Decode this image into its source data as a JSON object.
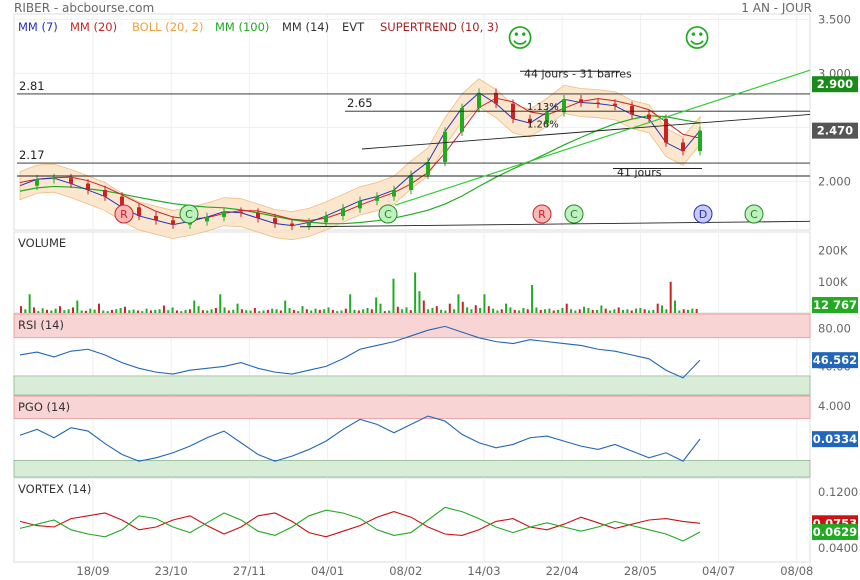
{
  "header": {
    "title": "RIBER - abcbourse.com",
    "period": "1 AN - JOUR"
  },
  "indicators": [
    {
      "label": "MM (7)",
      "color": "#2233bb"
    },
    {
      "label": "MM (20)",
      "color": "#cc2222"
    },
    {
      "label": "BOLL (20, 2)",
      "color": "#f0a040"
    },
    {
      "label": "MM (100)",
      "color": "#22aa22"
    },
    {
      "label": "MM (14)",
      "color": "#333333"
    },
    {
      "label": "EVT",
      "color": "#333333"
    },
    {
      "label": "SUPERTREND (10, 3)",
      "color": "#aa2222"
    }
  ],
  "panels": {
    "volume": "VOLUME",
    "rsi": "RSI (14)",
    "pgo": "PGO (14)",
    "vortex": "VORTEX (14)"
  },
  "chart_data": {
    "type": "candlestick",
    "x_tick_labels": [
      "18/09",
      "23/10",
      "27/11",
      "04/01",
      "08/02",
      "14/03",
      "22/04",
      "28/05",
      "04/07",
      "08/08"
    ],
    "price": {
      "ylim": [
        1.55,
        3.55
      ],
      "ticks": [
        "3.500",
        "3.000",
        "2.500",
        "2.000"
      ],
      "tick_values": [
        3.5,
        3.0,
        2.5,
        2.0
      ],
      "close_points": [
        1.96,
        2.02,
        2.03,
        1.98,
        1.92,
        1.86,
        1.76,
        1.68,
        1.64,
        1.6,
        1.63,
        1.67,
        1.72,
        1.71,
        1.66,
        1.61,
        1.59,
        1.62,
        1.68,
        1.75,
        1.82,
        1.86,
        1.92,
        2.06,
        2.18,
        2.46,
        2.68,
        2.82,
        2.72,
        2.58,
        2.54,
        2.64,
        2.76,
        2.73,
        2.72,
        2.7,
        2.62,
        2.58,
        2.36,
        2.28,
        2.47
      ],
      "levels": [
        {
          "label": "2.81",
          "value": 2.81
        },
        {
          "label": "2.65",
          "value": 2.65
        },
        {
          "label": "2.17",
          "value": 2.17
        }
      ],
      "current_labels": [
        {
          "text": "2.900",
          "value": 2.9,
          "color": "#1a8a1a"
        },
        {
          "text": "2.470",
          "value": 2.47,
          "color": "#555555"
        }
      ],
      "annotations": [
        "44 jours - 31 barres",
        "41 jours",
        "1.13%",
        "1.26%"
      ],
      "signals": [
        {
          "letter": "R",
          "kind": "resistance"
        },
        {
          "letter": "C",
          "kind": "buy"
        },
        {
          "letter": "C",
          "kind": "buy"
        },
        {
          "letter": "R",
          "kind": "resistance"
        },
        {
          "letter": "C",
          "kind": "buy"
        },
        {
          "letter": "D",
          "kind": "divergence"
        },
        {
          "letter": "C",
          "kind": "buy"
        }
      ],
      "smileys": [
        "☺",
        "☺"
      ]
    },
    "volume": {
      "ticks": [
        "200K",
        "100K"
      ],
      "tick_values": [
        200000,
        100000
      ],
      "ylim": [
        0,
        260000
      ],
      "current_label": "12 767",
      "current_value": 12767,
      "bars_k": [
        22,
        12,
        60,
        18,
        6,
        15,
        10,
        8,
        14,
        22,
        9,
        12,
        18,
        40,
        8,
        7,
        14,
        11,
        30,
        8,
        6,
        10,
        12,
        16,
        20,
        9,
        11,
        8,
        6,
        14,
        8,
        10,
        12,
        24,
        9,
        18,
        8,
        6,
        10,
        12,
        40,
        22,
        9,
        8,
        12,
        16,
        60,
        18,
        8,
        10,
        30,
        12,
        9,
        8,
        16,
        6,
        8,
        10,
        14,
        12,
        8,
        40,
        16,
        10,
        6,
        22,
        12,
        8,
        14,
        10,
        12,
        18,
        10,
        6,
        8,
        14,
        60,
        10,
        8,
        12,
        16,
        12,
        50,
        30,
        6,
        8,
        110,
        20,
        12,
        18,
        9,
        130,
        70,
        40,
        12,
        16,
        22,
        10,
        8,
        30,
        12,
        60,
        36,
        18,
        12,
        25,
        16,
        60,
        22,
        14,
        8,
        12,
        30,
        18,
        10,
        8,
        16,
        12,
        90,
        18,
        10,
        12,
        14,
        8,
        10,
        16,
        30,
        12,
        8,
        12,
        20,
        16,
        10,
        10,
        24,
        14,
        8,
        12,
        18,
        10,
        12,
        8,
        14,
        16,
        12,
        8,
        10,
        30,
        24,
        12,
        100,
        40,
        8,
        12,
        10,
        14,
        13
      ]
    },
    "rsi": {
      "ticks": [
        "80.00",
        "40.00"
      ],
      "tick_values": [
        80,
        40
      ],
      "ylim": [
        10,
        95
      ],
      "zones": {
        "high": 70,
        "low": 30
      },
      "current_label": "46.562",
      "current_value": 46.562,
      "values": [
        52,
        55,
        50,
        56,
        58,
        52,
        44,
        38,
        34,
        32,
        36,
        38,
        40,
        44,
        38,
        34,
        32,
        36,
        40,
        48,
        58,
        62,
        66,
        72,
        78,
        82,
        76,
        70,
        66,
        64,
        68,
        66,
        64,
        62,
        58,
        56,
        52,
        48,
        36,
        28,
        46.562
      ]
    },
    "pgo": {
      "ticks": [
        "4.000"
      ],
      "tick_values": [
        4.0
      ],
      "ylim": [
        -4.5,
        5.2
      ],
      "zones": {
        "high": 2.5,
        "low": -2.5
      },
      "current_label": "0.0334",
      "current_value": 0.0334,
      "values": [
        0.5,
        1.2,
        0.2,
        1.4,
        1.0,
        -0.5,
        -1.8,
        -2.6,
        -2.2,
        -1.6,
        -0.8,
        0.2,
        1.0,
        -0.4,
        -1.8,
        -2.6,
        -2.0,
        -1.2,
        -0.2,
        1.2,
        2.4,
        1.8,
        0.8,
        1.8,
        2.8,
        2.2,
        0.6,
        -0.4,
        -1.0,
        -0.6,
        0.2,
        0.4,
        -0.2,
        -0.8,
        -1.2,
        -0.6,
        -1.4,
        -2.2,
        -1.6,
        -2.6,
        0.0334
      ]
    },
    "vortex": {
      "ticks": [
        "0.1200",
        "0.0400"
      ],
      "tick_values": [
        0.12,
        0.04
      ],
      "ylim": [
        0.02,
        0.14
      ],
      "series": [
        {
          "color": "#cc1111",
          "current_label": "0.0753",
          "current_value": 0.0753,
          "values": [
            0.078,
            0.072,
            0.07,
            0.082,
            0.086,
            0.09,
            0.08,
            0.066,
            0.07,
            0.08,
            0.086,
            0.072,
            0.06,
            0.07,
            0.086,
            0.09,
            0.078,
            0.062,
            0.056,
            0.064,
            0.072,
            0.084,
            0.092,
            0.084,
            0.07,
            0.06,
            0.058,
            0.066,
            0.078,
            0.082,
            0.07,
            0.066,
            0.074,
            0.084,
            0.076,
            0.068,
            0.074,
            0.08,
            0.082,
            0.078,
            0.0753
          ]
        },
        {
          "color": "#22aa22",
          "current_label": "0.0629",
          "current_value": 0.0629,
          "values": [
            0.068,
            0.074,
            0.08,
            0.066,
            0.06,
            0.056,
            0.066,
            0.086,
            0.082,
            0.07,
            0.062,
            0.076,
            0.09,
            0.08,
            0.064,
            0.058,
            0.07,
            0.086,
            0.094,
            0.09,
            0.082,
            0.066,
            0.058,
            0.062,
            0.08,
            0.098,
            0.092,
            0.082,
            0.07,
            0.062,
            0.07,
            0.076,
            0.07,
            0.064,
            0.07,
            0.078,
            0.072,
            0.066,
            0.06,
            0.05,
            0.0629
          ]
        }
      ]
    }
  }
}
